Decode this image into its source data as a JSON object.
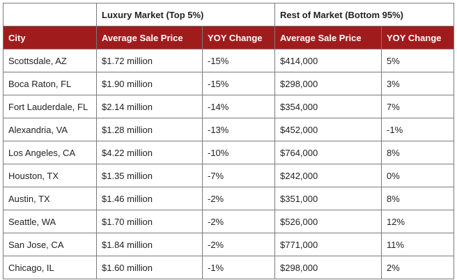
{
  "groups": {
    "luxury": "Luxury Market (Top 5%)",
    "rest": "Rest of Market (Bottom 95%)"
  },
  "headers": [
    "City",
    "Average Sale Price",
    "YOY Change",
    "Average Sale Price",
    "YOY Change"
  ],
  "rows": [
    [
      "Scottsdale, AZ",
      "$1.72 million",
      "-15%",
      "$414,000",
      "5%"
    ],
    [
      "Boca Raton, FL",
      "$1.90 million",
      "-15%",
      "$298,000",
      "3%"
    ],
    [
      "Fort Lauderdale, FL",
      "$2.14 million",
      "-14%",
      "$354,000",
      "7%"
    ],
    [
      "Alexandria, VA",
      "$1.28 million",
      "-13%",
      "$452,000",
      "-1%"
    ],
    [
      "Los Angeles, CA",
      "$4.22 million",
      "-10%",
      "$764,000",
      "8%"
    ],
    [
      "Houston, TX",
      "$1.35 million",
      "-7%",
      "$242,000",
      "0%"
    ],
    [
      "Austin, TX",
      "$1.46 million",
      "-2%",
      "$351,000",
      "8%"
    ],
    [
      "Seattle, WA",
      "$1.70 million",
      "-2%",
      "$526,000",
      "12%"
    ],
    [
      "San Jose, CA",
      "$1.84 million",
      "-2%",
      "$771,000",
      "11%"
    ],
    [
      "Chicago, IL",
      "$1.60 million",
      "-1%",
      "$298,000",
      "2%"
    ]
  ],
  "colors": {
    "header_background": "#a01c1c",
    "header_text": "#ffffff",
    "border": "#7a7a7a"
  }
}
